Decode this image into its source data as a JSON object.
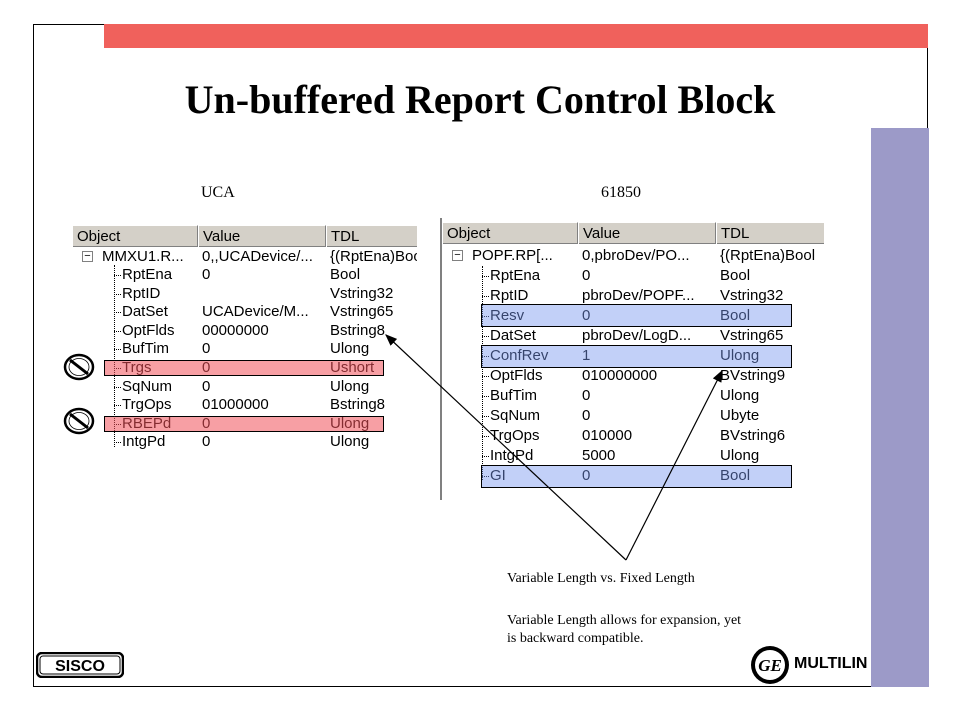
{
  "slide": {
    "title": "Un-buffered Report Control Block",
    "colors": {
      "top_bar": "#f0615c",
      "side_bar": "#9c9ac8",
      "highlight_red": "#f0505a",
      "highlight_blue": "#7896f0"
    }
  },
  "left_panel": {
    "label": "UCA",
    "headers": [
      "Object",
      "Value",
      "TDL"
    ],
    "root": {
      "object": "MMXU1.R...",
      "value": "0,,UCADevice/...",
      "tdl": "{(RptEna)Boo"
    },
    "rows": [
      {
        "object": "RptEna",
        "value": "0",
        "tdl": "Bool"
      },
      {
        "object": "RptID",
        "value": "",
        "tdl": "Vstring32"
      },
      {
        "object": "DatSet",
        "value": "UCADevice/M...",
        "tdl": "Vstring65"
      },
      {
        "object": "OptFlds",
        "value": "00000000",
        "tdl": "Bstring8"
      },
      {
        "object": "BufTim",
        "value": "0",
        "tdl": "Ulong"
      },
      {
        "object": "Trgs",
        "value": "0",
        "tdl": "Ushort"
      },
      {
        "object": "SqNum",
        "value": "0",
        "tdl": "Ulong"
      },
      {
        "object": "TrgOps",
        "value": "01000000",
        "tdl": "Bstring8"
      },
      {
        "object": "RBEPd",
        "value": "0",
        "tdl": "Ulong"
      },
      {
        "object": "IntgPd",
        "value": "0",
        "tdl": "Ulong"
      }
    ]
  },
  "right_panel": {
    "label": "61850",
    "headers": [
      "Object",
      "Value",
      "TDL"
    ],
    "root": {
      "object": "POPF.RP[...",
      "value": "0,pbroDev/PO...",
      "tdl": "{(RptEna)Bool"
    },
    "rows": [
      {
        "object": "RptEna",
        "value": "0",
        "tdl": "Bool"
      },
      {
        "object": "RptID",
        "value": "pbroDev/POPF...",
        "tdl": "Vstring32"
      },
      {
        "object": "Resv",
        "value": "0",
        "tdl": "Bool"
      },
      {
        "object": "DatSet",
        "value": "pbroDev/LogD...",
        "tdl": "Vstring65"
      },
      {
        "object": "ConfRev",
        "value": "1",
        "tdl": "Ulong"
      },
      {
        "object": "OptFlds",
        "value": "010000000",
        "tdl": "BVstring9"
      },
      {
        "object": "BufTim",
        "value": "0",
        "tdl": "Ulong"
      },
      {
        "object": "SqNum",
        "value": "0",
        "tdl": "Ubyte"
      },
      {
        "object": "TrgOps",
        "value": "010000",
        "tdl": "BVstring6"
      },
      {
        "object": "IntgPd",
        "value": "5000",
        "tdl": "Ulong"
      },
      {
        "object": "GI",
        "value": "0",
        "tdl": "Bool"
      }
    ]
  },
  "notes": {
    "line1": "Variable Length vs. Fixed Length",
    "line2": "Variable Length allows for expansion, yet",
    "line3": "is backward compatible."
  },
  "logos": {
    "sisco": "SISCO",
    "ge": "GE",
    "multilin": "MULTILIN",
    "icon_names": [
      "no-entry-icon",
      "ge-monogram-icon",
      "sisco-logo"
    ]
  }
}
